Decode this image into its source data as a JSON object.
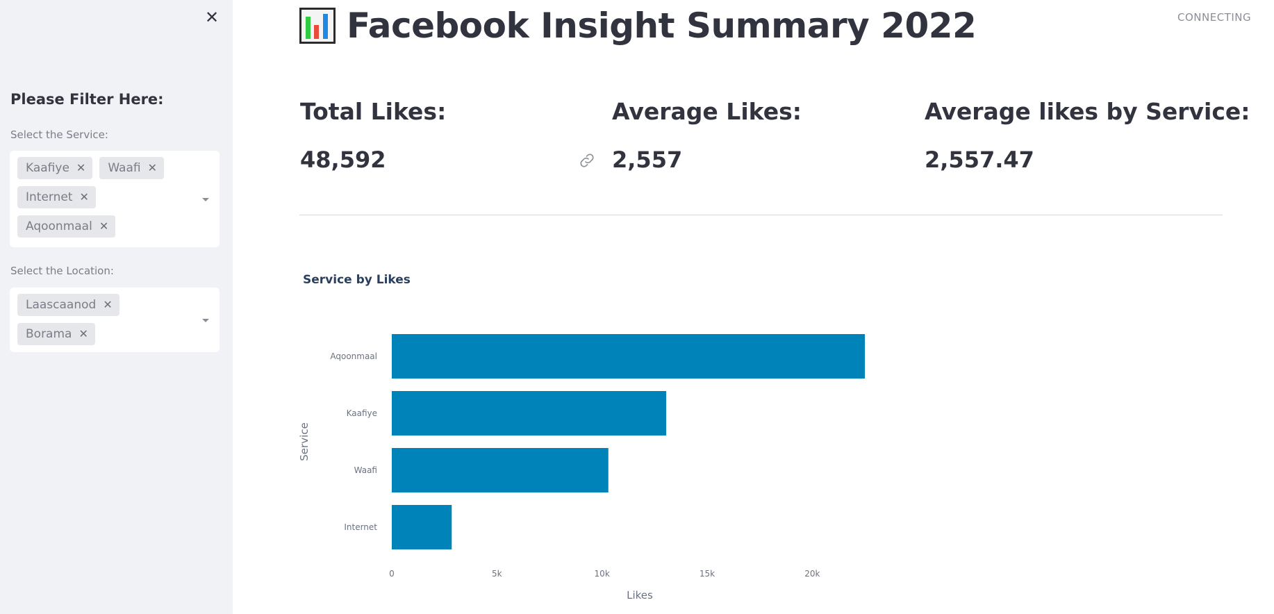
{
  "sidebar": {
    "close_glyph": "✕",
    "title": "Please Filter Here:",
    "service_filter": {
      "label": "Select the Service:",
      "selected": [
        "Kaafiye",
        "Waafi",
        "Internet",
        "Aqoonmaal"
      ]
    },
    "location_filter": {
      "label": "Select the Location:",
      "selected": [
        "Laascaanod",
        "Borama"
      ]
    },
    "chip_remove_glyph": "✕"
  },
  "header": {
    "title": "Facebook Insight Summary 2022",
    "status": "CONNECTING"
  },
  "metrics": {
    "total": {
      "label": "Total Likes:",
      "value": "48,592"
    },
    "average": {
      "label": "Average Likes:",
      "value": "2,557"
    },
    "avg_by_service": {
      "label": "Average likes by Service:",
      "value": "2,557.47"
    }
  },
  "colors": {
    "bar": "#0083b8",
    "sidebar_bg": "#f0f2f6"
  },
  "chart_data": {
    "type": "bar",
    "orientation": "horizontal",
    "title": "Service by Likes",
    "xlabel": "Likes",
    "ylabel": "Service",
    "categories": [
      "Aqoonmaal",
      "Kaafiye",
      "Waafi",
      "Internet"
    ],
    "values": [
      22500,
      13050,
      10300,
      2850
    ],
    "xlim": [
      0,
      22500
    ],
    "xticks": [
      0,
      5000,
      10000,
      15000,
      20000
    ],
    "xtick_labels": [
      "0",
      "5k",
      "10k",
      "15k",
      "20k"
    ],
    "grid": false
  }
}
